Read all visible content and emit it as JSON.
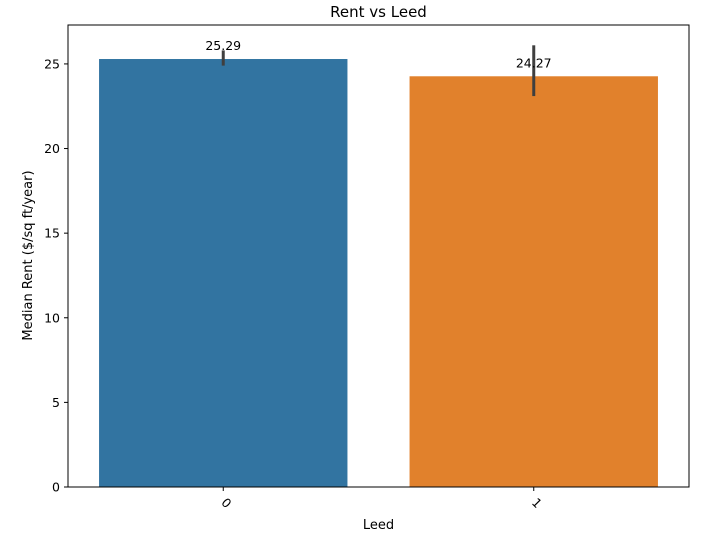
{
  "chart_data": {
    "type": "bar",
    "title": "Rent vs Leed",
    "xlabel": "Leed",
    "ylabel": "Median Rent ($/sq ft/year)",
    "categories": [
      "0",
      "1"
    ],
    "values": [
      25.29,
      24.27
    ],
    "value_labels": [
      "25.29",
      "24.27"
    ],
    "error_bars": [
      {
        "low": 24.9,
        "high": 25.8
      },
      {
        "low": 23.1,
        "high": 26.1
      }
    ],
    "colors": [
      "#3274a1",
      "#e1812c"
    ],
    "error_color": "#3f3f3f",
    "ylim": [
      0,
      27.3
    ],
    "yticks": [
      0,
      5,
      10,
      15,
      20,
      25
    ],
    "ytick_labels": [
      "0",
      "5",
      "10",
      "15",
      "20",
      "25"
    ],
    "xtick_rotation": "45 degrees",
    "grid": false,
    "legend": "none"
  }
}
